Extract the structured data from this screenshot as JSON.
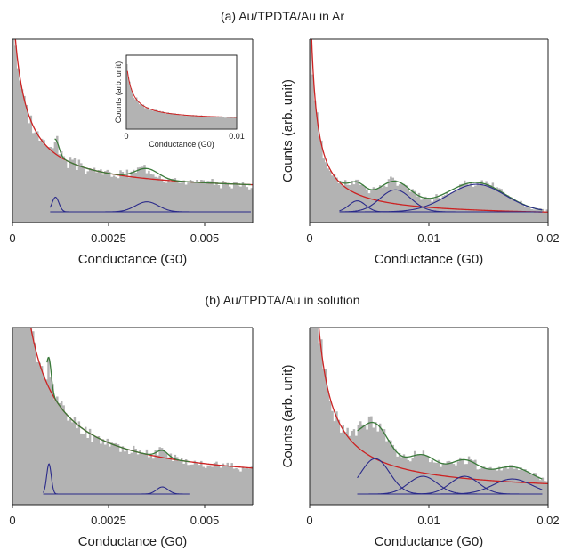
{
  "captions": {
    "a": "(a) Au/TPDTA/Au in Ar",
    "b": "(b) Au/TPDTA/Au in solution"
  },
  "colors": {
    "histogram": "#b3b3b3",
    "background_fit": "#cc2222",
    "total_fit": "#3a7a3a",
    "peaks": "#2a2a8a"
  },
  "chart_data": [
    {
      "id": "a-left",
      "type": "area",
      "xlabel": "Conductance (G0)",
      "ylabel": "",
      "xlim": [
        0,
        0.00625
      ],
      "xticks": [
        "0",
        "0.0025",
        "0.005"
      ],
      "xtick_values": [
        0,
        0.0025,
        0.005
      ],
      "decay": {
        "A": 0.0003,
        "c": 0.00028,
        "b": 0.16
      },
      "peaks": [
        {
          "center": 0.00112,
          "sigma": 9e-05,
          "height": 0.08,
          "fit_start": 0.0011
        },
        {
          "center": 0.0035,
          "sigma": 0.0003,
          "height": 0.055
        }
      ],
      "peak_range": [
        0.00098,
        0.0062
      ],
      "noise_seed": 3,
      "inset": {
        "xlabel": "Conductance (G0)",
        "ylabel": "Counts (arb. unit)",
        "xlim": [
          0,
          0.01
        ],
        "xticks": [
          "0",
          "0.01"
        ],
        "decay": {
          "A": 0.0004,
          "c": 0.0005,
          "b": 0.12
        }
      }
    },
    {
      "id": "a-right",
      "type": "area",
      "xlabel": "Conductance (G0)",
      "ylabel": "Counts (arb. unit)",
      "xlim": [
        0,
        0.02
      ],
      "xticks": [
        "0",
        "0.01",
        "0.02"
      ],
      "xtick_values": [
        0,
        0.01,
        0.02
      ],
      "decay": {
        "A": 0.00055,
        "c": 0.0004,
        "b": 0.03
      },
      "peaks": [
        {
          "center": 0.004,
          "sigma": 0.0007,
          "height": 0.06
        },
        {
          "center": 0.0072,
          "sigma": 0.0013,
          "height": 0.12
        },
        {
          "center": 0.014,
          "sigma": 0.0024,
          "height": 0.15
        }
      ],
      "peak_range": [
        0.0025,
        0.0195
      ],
      "noise_seed": 7
    },
    {
      "id": "b-left",
      "type": "area",
      "xlabel": "Conductance (G0)",
      "ylabel": "",
      "xlim": [
        0,
        0.00625
      ],
      "xticks": [
        "0",
        "0.0025",
        "0.005"
      ],
      "xtick_values": [
        0,
        0.0025,
        0.005
      ],
      "decay": {
        "A": 0.0007,
        "c": 0.0003,
        "b": 0.1
      },
      "peaks": [
        {
          "center": 0.00095,
          "sigma": 6e-05,
          "height": 0.17,
          "fit_start": 0.0009
        },
        {
          "center": 0.0039,
          "sigma": 0.00015,
          "height": 0.04
        }
      ],
      "peak_range": [
        0.0008,
        0.0046
      ],
      "noise_seed": 11
    },
    {
      "id": "b-right",
      "type": "area",
      "xlabel": "Conductance (G0)",
      "ylabel": "Counts (arb. unit)",
      "xlim": [
        0,
        0.02
      ],
      "xticks": [
        "0",
        "0.01",
        "0.02"
      ],
      "xtick_values": [
        0,
        0.01,
        0.02
      ],
      "decay": {
        "A": 0.0012,
        "c": 0.0005,
        "b": 0.06
      },
      "peaks": [
        {
          "center": 0.0055,
          "sigma": 0.0012,
          "height": 0.2
        },
        {
          "center": 0.0095,
          "sigma": 0.0012,
          "height": 0.1
        },
        {
          "center": 0.013,
          "sigma": 0.0012,
          "height": 0.1
        },
        {
          "center": 0.017,
          "sigma": 0.0016,
          "height": 0.085
        }
      ],
      "peak_range": [
        0.004,
        0.0195
      ],
      "noise_seed": 19
    }
  ]
}
